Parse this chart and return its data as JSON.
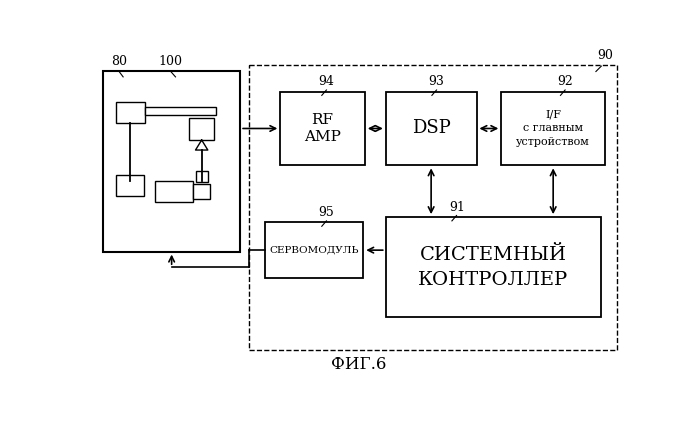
{
  "title": "ФИГ.6",
  "bg_color": "#ffffff",
  "label_80": "80",
  "label_100": "100",
  "label_90": "90",
  "label_91": "91",
  "label_92": "92",
  "label_93": "93",
  "label_94": "94",
  "label_95": "95",
  "box_rf_amp": "RF\nAMP",
  "box_dsp": "DSP",
  "box_if": "I/F\nс главным\nустройством",
  "box_servo": "СЕРВОМОДУЛЬ",
  "box_sys": "СИСТЕМНЫЙ\nКОНТРОЛЛЕР"
}
